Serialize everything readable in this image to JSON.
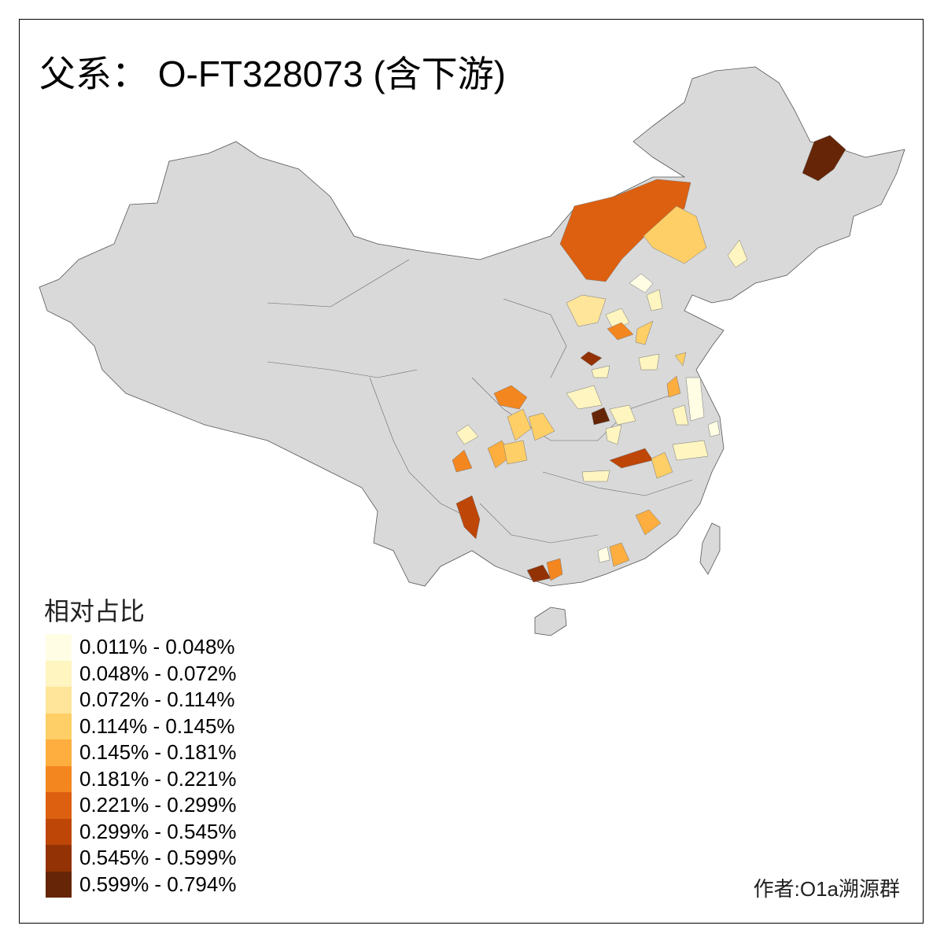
{
  "title": "父系： O-FT328073 (含下游)",
  "legend": {
    "title": "相对占比",
    "items": [
      {
        "label": "0.011% - 0.048%",
        "color": "#FFFDE4"
      },
      {
        "label": "0.048% - 0.072%",
        "color": "#FFF5C0"
      },
      {
        "label": "0.072% - 0.114%",
        "color": "#FEE59A"
      },
      {
        "label": "0.114% - 0.145%",
        "color": "#FECF66"
      },
      {
        "label": "0.145% - 0.181%",
        "color": "#FDAE3E"
      },
      {
        "label": "0.181% - 0.221%",
        "color": "#F4861F"
      },
      {
        "label": "0.221% - 0.299%",
        "color": "#DD6010"
      },
      {
        "label": "0.299% - 0.545%",
        "color": "#BE4607"
      },
      {
        "label": "0.545% - 0.599%",
        "color": "#933205"
      },
      {
        "label": "0.599% - 0.794%",
        "color": "#662506"
      }
    ]
  },
  "no_data_color": "#D9D9D9",
  "author": "作者:O1a溯源群"
}
